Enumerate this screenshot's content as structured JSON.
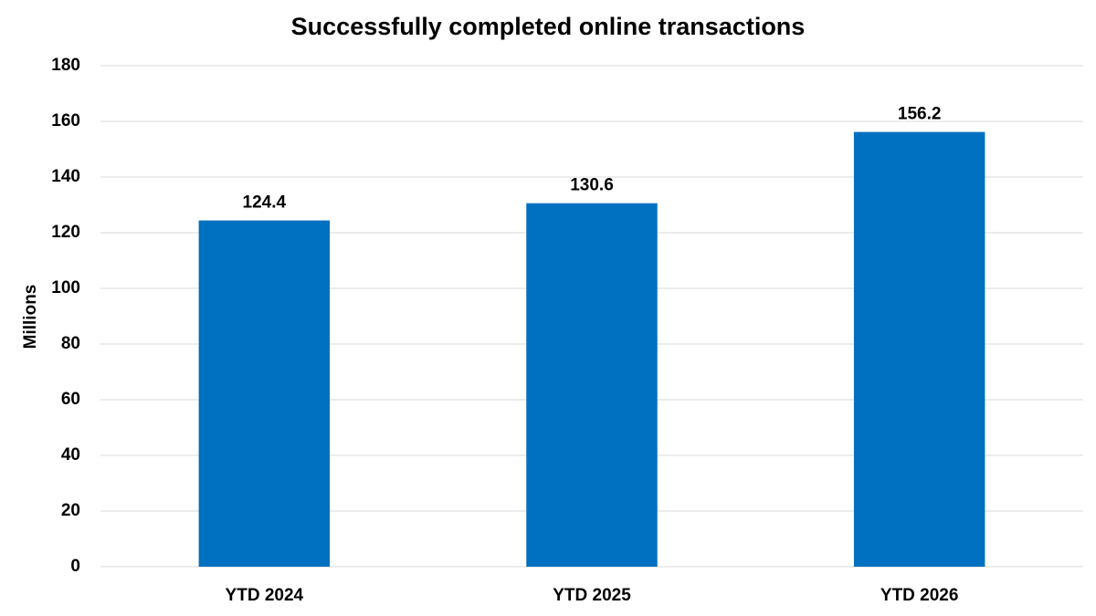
{
  "chart_data": {
    "type": "bar",
    "title": "Successfully completed online transactions",
    "y_label": "Millions",
    "categories": [
      "YTD 2024",
      "YTD 2025",
      "YTD 2026"
    ],
    "values": [
      124.4,
      130.6,
      156.2
    ],
    "color": "#0070c0",
    "ylim": [
      0,
      180
    ],
    "yticks": [
      0,
      20,
      40,
      60,
      80,
      100,
      120,
      140,
      160,
      180
    ],
    "grid": true
  }
}
